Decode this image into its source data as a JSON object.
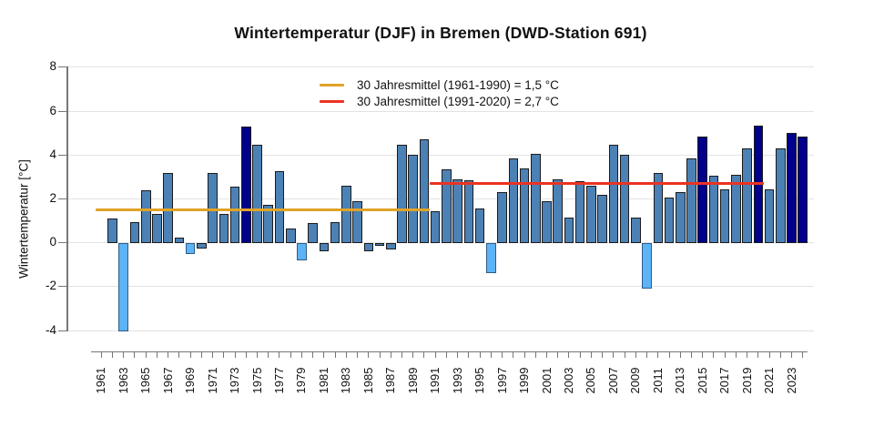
{
  "title": "Wintertemperatur (DJF) in Bremen (DWD-Station 691)",
  "y_axis": {
    "label": "Wintertemperatur [°C]",
    "tick_values": [
      -4,
      -2,
      0,
      2,
      4,
      6,
      8
    ]
  },
  "x_axis": {
    "tick_year_start": 1961,
    "tick_year_end": 2024,
    "label_years": [
      1961,
      1963,
      1965,
      1967,
      1969,
      1971,
      1973,
      1975,
      1977,
      1979,
      1981,
      1983,
      1985,
      1987,
      1989,
      1991,
      1993,
      1995,
      1997,
      1999,
      2001,
      2003,
      2005,
      2007,
      2009,
      2011,
      2013,
      2015,
      2017,
      2019,
      2021,
      2023
    ]
  },
  "legend": {
    "items": [
      {
        "label": "30 Jahresmittel (1961-1990) = 1,5 °C",
        "color": "#E0A328"
      },
      {
        "label": "30 Jahresmittel (1991-2020) = 2,7 °C",
        "color": "#EA3323"
      }
    ]
  },
  "chart_data": {
    "type": "bar",
    "title": "Wintertemperatur (DJF) in Bremen (DWD-Station 691)",
    "xlabel": "",
    "ylabel": "Wintertemperatur [°C]",
    "ylim": [
      -4.7,
      8
    ],
    "grid": true,
    "legend_position": "top-center",
    "years": [
      1962,
      1963,
      1964,
      1965,
      1966,
      1967,
      1968,
      1969,
      1970,
      1971,
      1972,
      1973,
      1974,
      1975,
      1976,
      1977,
      1978,
      1979,
      1980,
      1981,
      1982,
      1983,
      1984,
      1985,
      1986,
      1987,
      1988,
      1989,
      1990,
      1991,
      1992,
      1993,
      1994,
      1995,
      1996,
      1997,
      1998,
      1999,
      2000,
      2001,
      2002,
      2003,
      2004,
      2005,
      2006,
      2007,
      2008,
      2009,
      2010,
      2011,
      2012,
      2013,
      2014,
      2015,
      2016,
      2017,
      2018,
      2019,
      2020,
      2021,
      2022,
      2023,
      2024
    ],
    "values": [
      1.1,
      -4.05,
      0.95,
      2.4,
      1.3,
      3.2,
      0.25,
      -0.5,
      -0.25,
      3.2,
      1.3,
      2.55,
      5.3,
      4.45,
      1.75,
      3.25,
      0.65,
      -0.8,
      0.9,
      -0.4,
      0.95,
      2.6,
      1.9,
      -0.4,
      -0.15,
      -0.3,
      4.45,
      4.0,
      4.7,
      1.45,
      3.35,
      2.9,
      2.85,
      1.55,
      -1.4,
      2.3,
      3.85,
      3.4,
      4.05,
      1.9,
      2.9,
      1.15,
      2.8,
      2.6,
      2.2,
      4.45,
      4.0,
      1.15,
      -2.1,
      3.2,
      2.05,
      2.3,
      3.85,
      4.85,
      3.05,
      2.45,
      3.1,
      4.3,
      5.35,
      2.45,
      4.3,
      5.0,
      4.85
    ],
    "colors": {
      "default": "#4C81B5",
      "warmest": "#00008B",
      "coldest": "#5CB3F5"
    },
    "warmest_years": [
      1974,
      2015,
      2020,
      2023,
      2024
    ],
    "coldest_years": [
      1963,
      1969,
      1979,
      1996,
      2010
    ],
    "reference_lines": [
      {
        "label": "30 Jahresmittel (1961-1990) = 1,5 °C",
        "value": 1.5,
        "from_year": 1961,
        "to_year": 1990,
        "color": "#E0A328"
      },
      {
        "label": "30 Jahresmittel (1991-2020) = 2,7 °C",
        "value": 2.7,
        "from_year": 1991,
        "to_year": 2020,
        "color": "#EA3323"
      }
    ]
  }
}
